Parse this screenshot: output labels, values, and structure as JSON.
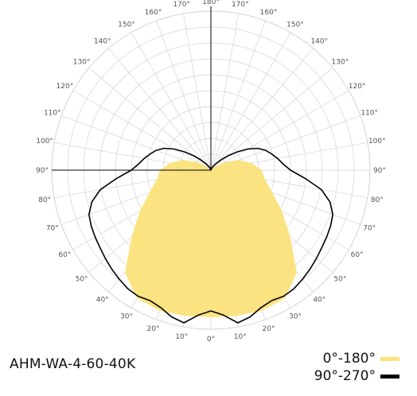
{
  "chart_data": {
    "type": "polar",
    "product": "AHM-WA-4-60-40K",
    "angle_unit": "degrees",
    "angle_labels_left": [
      "0°",
      "10°",
      "20°",
      "30°",
      "40°",
      "50°",
      "60°",
      "70°",
      "80°",
      "90°",
      "100°",
      "110°",
      "120°",
      "130°",
      "140°",
      "150°",
      "160°",
      "170°",
      "180°"
    ],
    "angle_labels_right": [
      "10°",
      "20°",
      "30°",
      "40°",
      "50°",
      "60°",
      "70°",
      "80°",
      "90°",
      "100°",
      "110°",
      "120°",
      "130°",
      "140°",
      "150°",
      "160°",
      "170°"
    ],
    "radial_max": 1.0,
    "series": [
      {
        "name": "0°-180°",
        "color": "#fbe27a",
        "style": "filled",
        "angles": [
          0,
          10,
          20,
          30,
          40,
          50,
          60,
          70,
          80,
          90,
          100,
          110,
          120,
          130,
          140,
          150,
          160,
          170,
          180
        ],
        "values": [
          0.925,
          0.93,
          0.94,
          0.93,
          0.84,
          0.65,
          0.515,
          0.41,
          0.345,
          0.32,
          0.26,
          0.185,
          0.1,
          0.03,
          0.008,
          0,
          0,
          0,
          0
        ]
      },
      {
        "name": "90°-270°",
        "color": "#000000",
        "style": "line",
        "angles": [
          0,
          5,
          10,
          15,
          20,
          25,
          30,
          35,
          40,
          45,
          50,
          55,
          60,
          65,
          70,
          75,
          80,
          85,
          90,
          95,
          100,
          105,
          110,
          115,
          120,
          125,
          130,
          135,
          140,
          145,
          150,
          155,
          160,
          165,
          170,
          175,
          180
        ],
        "values": [
          0.885,
          0.915,
          0.975,
          0.955,
          0.92,
          0.905,
          0.915,
          0.91,
          0.895,
          0.88,
          0.865,
          0.85,
          0.84,
          0.83,
          0.815,
          0.775,
          0.705,
          0.595,
          0.5,
          0.455,
          0.425,
          0.395,
          0.365,
          0.325,
          0.265,
          0.2,
          0.14,
          0.095,
          0.06,
          0.04,
          0.025,
          0.015,
          0.008,
          0.004,
          0.002,
          0.001,
          0.001
        ]
      }
    ],
    "legend": {
      "position": "bottom-right",
      "entries": [
        {
          "label": "0°-180°",
          "color": "#fbe27a"
        },
        {
          "label": "90°-270°",
          "color": "#000000"
        }
      ]
    }
  }
}
